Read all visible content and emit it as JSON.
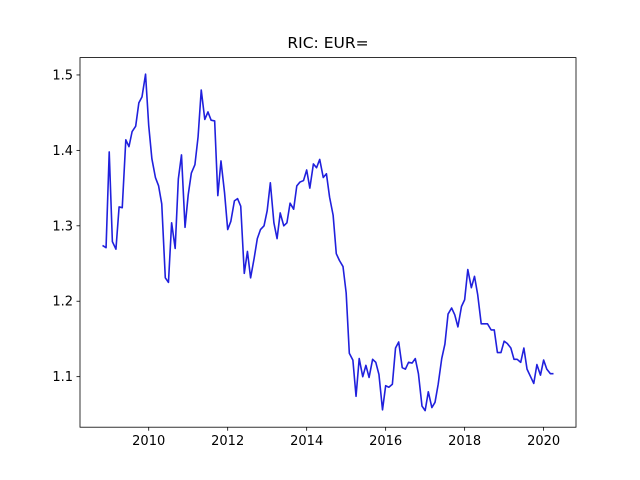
{
  "chart_data": {
    "type": "line",
    "title": "RIC: EUR=",
    "x": [
      2008.83,
      2008.92,
      2009.0,
      2009.08,
      2009.17,
      2009.25,
      2009.33,
      2009.42,
      2009.5,
      2009.58,
      2009.67,
      2009.75,
      2009.83,
      2009.92,
      2010.0,
      2010.08,
      2010.17,
      2010.25,
      2010.33,
      2010.42,
      2010.5,
      2010.58,
      2010.67,
      2010.75,
      2010.83,
      2010.92,
      2011.0,
      2011.08,
      2011.17,
      2011.25,
      2011.33,
      2011.42,
      2011.5,
      2011.58,
      2011.67,
      2011.75,
      2011.83,
      2011.92,
      2012.0,
      2012.08,
      2012.17,
      2012.25,
      2012.33,
      2012.42,
      2012.5,
      2012.58,
      2012.67,
      2012.75,
      2012.83,
      2012.92,
      2013.0,
      2013.08,
      2013.17,
      2013.25,
      2013.33,
      2013.42,
      2013.5,
      2013.58,
      2013.67,
      2013.75,
      2013.83,
      2013.92,
      2014.0,
      2014.08,
      2014.17,
      2014.25,
      2014.33,
      2014.42,
      2014.5,
      2014.58,
      2014.67,
      2014.75,
      2014.83,
      2014.92,
      2015.0,
      2015.08,
      2015.17,
      2015.25,
      2015.33,
      2015.42,
      2015.5,
      2015.58,
      2015.67,
      2015.75,
      2015.83,
      2015.92,
      2016.0,
      2016.08,
      2016.17,
      2016.25,
      2016.33,
      2016.42,
      2016.5,
      2016.58,
      2016.67,
      2016.75,
      2016.83,
      2016.92,
      2017.0,
      2017.08,
      2017.17,
      2017.25,
      2017.33,
      2017.42,
      2017.5,
      2017.58,
      2017.67,
      2017.75,
      2017.83,
      2017.92,
      2018.0,
      2018.08,
      2018.17,
      2018.25,
      2018.33,
      2018.42,
      2018.5,
      2018.58,
      2018.67,
      2018.75,
      2018.83,
      2018.92,
      2019.0,
      2019.08,
      2019.17,
      2019.25,
      2019.33,
      2019.42,
      2019.5,
      2019.58,
      2019.67,
      2019.75,
      2019.83,
      2019.92,
      2020.0,
      2020.08,
      2020.17,
      2020.25
    ],
    "series": [
      {
        "color": "#2020dd",
        "values": [
          1.274,
          1.271,
          1.398,
          1.279,
          1.269,
          1.325,
          1.324,
          1.414,
          1.405,
          1.425,
          1.432,
          1.463,
          1.471,
          1.501,
          1.433,
          1.389,
          1.364,
          1.353,
          1.329,
          1.231,
          1.225,
          1.304,
          1.27,
          1.362,
          1.394,
          1.298,
          1.341,
          1.37,
          1.381,
          1.418,
          1.48,
          1.441,
          1.451,
          1.44,
          1.439,
          1.34,
          1.386,
          1.344,
          1.295,
          1.306,
          1.333,
          1.336,
          1.326,
          1.237,
          1.266,
          1.231,
          1.257,
          1.283,
          1.295,
          1.3,
          1.32,
          1.357,
          1.304,
          1.283,
          1.317,
          1.3,
          1.304,
          1.33,
          1.322,
          1.353,
          1.358,
          1.36,
          1.374,
          1.35,
          1.382,
          1.377,
          1.388,
          1.364,
          1.369,
          1.338,
          1.314,
          1.263,
          1.254,
          1.246,
          1.211,
          1.131,
          1.122,
          1.074,
          1.124,
          1.1,
          1.115,
          1.099,
          1.123,
          1.119,
          1.103,
          1.056,
          1.088,
          1.086,
          1.09,
          1.138,
          1.146,
          1.112,
          1.11,
          1.119,
          1.118,
          1.124,
          1.104,
          1.061,
          1.055,
          1.08,
          1.059,
          1.066,
          1.09,
          1.124,
          1.143,
          1.183,
          1.191,
          1.182,
          1.166,
          1.193,
          1.202,
          1.242,
          1.218,
          1.233,
          1.209,
          1.17,
          1.17,
          1.17,
          1.162,
          1.162,
          1.132,
          1.132,
          1.147,
          1.144,
          1.138,
          1.123,
          1.123,
          1.119,
          1.138,
          1.11,
          1.1,
          1.091,
          1.116,
          1.102,
          1.122,
          1.11,
          1.104,
          1.104
        ]
      }
    ],
    "xlim": [
      2008.26,
      2020.82
    ],
    "xticks": [
      2010,
      2012,
      2014,
      2016,
      2018,
      2020
    ],
    "ylim": [
      1.033,
      1.523
    ],
    "yticks": [
      1.1,
      1.2,
      1.3,
      1.4,
      1.5
    ]
  }
}
